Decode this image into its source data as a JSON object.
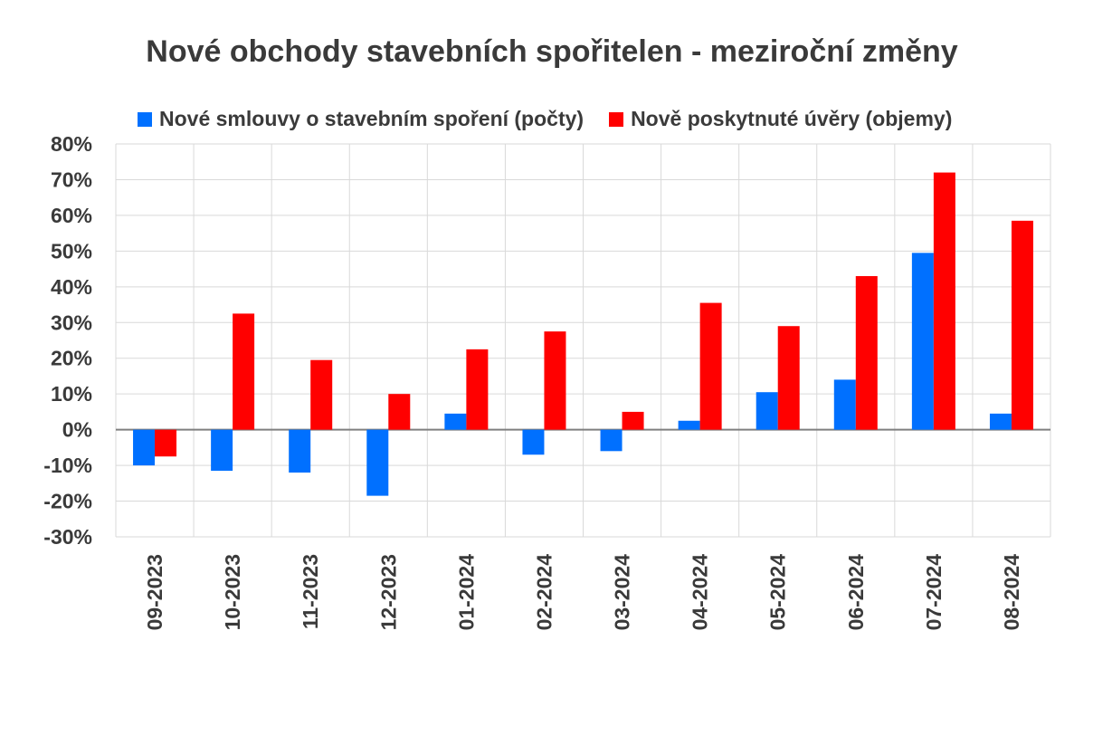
{
  "chart_data": {
    "type": "bar",
    "title": "Nové obchody stavebních spořitelen - meziroční změny",
    "categories": [
      "09-2023",
      "10-2023",
      "11-2023",
      "12-2023",
      "01-2024",
      "02-2024",
      "03-2024",
      "04-2024",
      "05-2024",
      "06-2024",
      "07-2024",
      "08-2024"
    ],
    "series": [
      {
        "name": "Nové smlouvy o stavebním spoření (počty)",
        "color": "#0070ff",
        "values": [
          -10,
          -11.5,
          -12,
          -18.5,
          4.5,
          -7,
          -6,
          2.5,
          10.5,
          14,
          49.5,
          4.5
        ]
      },
      {
        "name": "Nově poskytnuté úvěry (objemy)",
        "color": "#ff0000",
        "values": [
          -7.5,
          32.5,
          19.5,
          10,
          22.5,
          27.5,
          5,
          35.5,
          29,
          43,
          72,
          58.5
        ]
      }
    ],
    "yticks": [
      "80%",
      "70%",
      "60%",
      "50%",
      "40%",
      "30%",
      "20%",
      "10%",
      "0%",
      "-10%",
      "-20%",
      "-30%"
    ],
    "ylim": [
      -30,
      80
    ],
    "ylabel": "",
    "xlabel": "",
    "grid": true,
    "legend_position": "top"
  }
}
